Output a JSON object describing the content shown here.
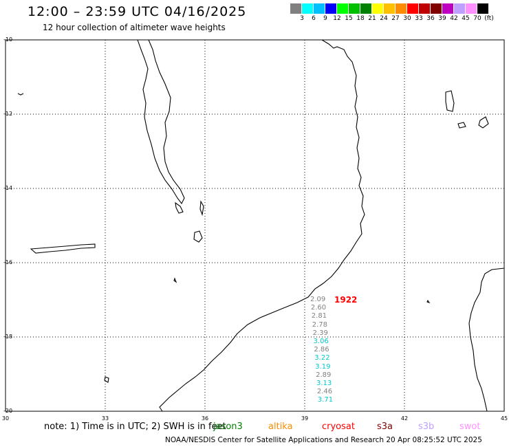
{
  "header": {
    "title": "12:00 – 23:59 UTC 04/16/2025",
    "subtitle": "12 hour collection of altimeter wave heights"
  },
  "legend": {
    "colors": [
      "#808080",
      "#00ffff",
      "#00bfff",
      "#0000ff",
      "#00ff00",
      "#00c000",
      "#008000",
      "#ffff00",
      "#ffc000",
      "#ff8c00",
      "#ff0000",
      "#c00000",
      "#800000",
      "#c000c0",
      "#c0a0ff",
      "#ff90ff",
      "#000000"
    ],
    "labels": [
      "3",
      "6",
      "9",
      "12",
      "15",
      "18",
      "21",
      "24",
      "27",
      "30",
      "33",
      "36",
      "39",
      "42",
      "45",
      "70",
      "(ft)"
    ]
  },
  "axes": {
    "lat_labels": [
      "-10",
      "-12",
      "-14",
      "-16",
      "-18",
      "-20"
    ],
    "lon_labels": [
      "30",
      "33",
      "36",
      "39",
      "42",
      "45"
    ]
  },
  "track": {
    "time_label": "1922",
    "time_color": "#ff0000",
    "swh": [
      {
        "value": "2.09",
        "color": "#808080"
      },
      {
        "value": "2.60",
        "color": "#808080"
      },
      {
        "value": "2.81",
        "color": "#808080"
      },
      {
        "value": "2.78",
        "color": "#808080"
      },
      {
        "value": "2.39",
        "color": "#808080"
      },
      {
        "value": "3.06",
        "color": "#00c8c8"
      },
      {
        "value": "2.86",
        "color": "#808080"
      },
      {
        "value": "3.22",
        "color": "#00c8c8"
      },
      {
        "value": "3.19",
        "color": "#00c8c8"
      },
      {
        "value": "2.89",
        "color": "#808080"
      },
      {
        "value": "3.13",
        "color": "#00c8c8"
      },
      {
        "value": "2.46",
        "color": "#808080"
      },
      {
        "value": "3.71",
        "color": "#00c8c8"
      }
    ]
  },
  "footer": {
    "note": "note: 1) Time is in UTC; 2) SWH is in feet",
    "missions": [
      {
        "name": "jason3",
        "color": "#008000"
      },
      {
        "name": "altika",
        "color": "#ff8c00"
      },
      {
        "name": "cryosat",
        "color": "#ff0000"
      },
      {
        "name": "s3a",
        "color": "#800000"
      },
      {
        "name": "s3b",
        "color": "#c0a0ff"
      },
      {
        "name": "swot",
        "color": "#ff90ff"
      }
    ],
    "source": "NOAA/NESDIS Center for Satellite Applications and Research    20 Apr 08:25:52 UTC 2025"
  }
}
